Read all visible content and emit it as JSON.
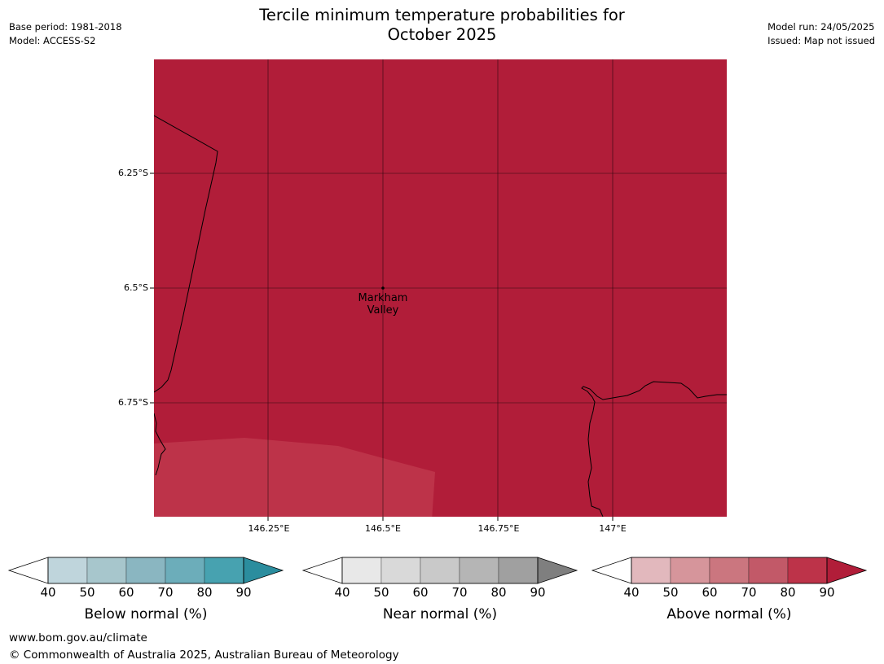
{
  "header": {
    "title_line1": "Tercile minimum temperature probabilities for",
    "title_line2": "October 2025",
    "base_period": "Base period: 1981-2018",
    "model": "Model: ACCESS-S2",
    "model_run": "Model run: 24/05/2025",
    "issued": "Issued: Map not issued"
  },
  "map": {
    "lat_ticks": [
      "6.25°S",
      "6.5°S",
      "6.75°S"
    ],
    "lon_ticks": [
      "146.25°E",
      "146.5°E",
      "146.75°E",
      "147°E"
    ],
    "place_label_line1": "Markham",
    "place_label_line2": "Valley",
    "fill_dominant": "#b11d39",
    "fill_lighter": "#bd3349",
    "dominant_category": "Above normal",
    "dominant_level": "80-90",
    "lighter_region_level": "70-80"
  },
  "colorbars": [
    {
      "name": "below",
      "title": "Below normal (%)",
      "ticks": [
        "40",
        "50",
        "60",
        "70",
        "80",
        "90"
      ],
      "colors": [
        "#bfd5dc",
        "#a7c6cc",
        "#8ab6c1",
        "#6cadba",
        "#47a2b0",
        "#2b8d9e"
      ]
    },
    {
      "name": "near",
      "title": "Near normal (%)",
      "ticks": [
        "40",
        "50",
        "60",
        "70",
        "80",
        "90"
      ],
      "colors": [
        "#e8e8e8",
        "#d9d9d9",
        "#c9c9c9",
        "#b5b5b5",
        "#a0a0a0",
        "#7f7f7f"
      ]
    },
    {
      "name": "above",
      "title": "Above normal (%)",
      "ticks": [
        "40",
        "50",
        "60",
        "70",
        "80",
        "90"
      ],
      "colors": [
        "#e2b8bd",
        "#d6959b",
        "#cb767f",
        "#c25968",
        "#bd3349",
        "#b11d39"
      ]
    }
  ],
  "footer": {
    "url": "www.bom.gov.au/climate",
    "copyright": "© Commonwealth of Australia 2025, Australian Bureau of Meteorology"
  }
}
